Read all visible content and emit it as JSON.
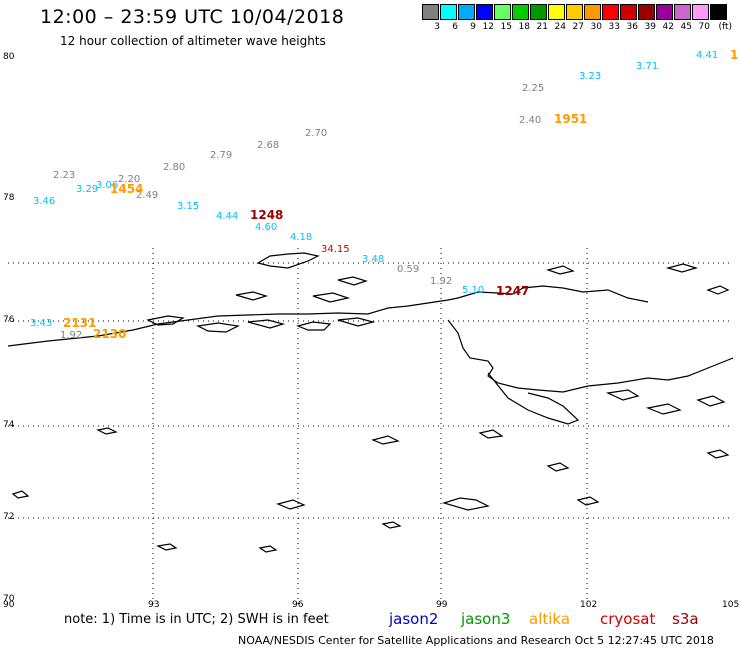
{
  "title": "12:00 – 23:59 UTC 10/04/2018",
  "subtitle": "12 hour collection of altimeter wave heights",
  "scale": {
    "unit": "(ft)",
    "swatches": [
      {
        "color": "#808080",
        "label": "3"
      },
      {
        "color": "#00ffff",
        "label": "6"
      },
      {
        "color": "#00aaff",
        "label": "9"
      },
      {
        "color": "#0000ff",
        "label": "12"
      },
      {
        "color": "#66ff66",
        "label": "15"
      },
      {
        "color": "#00cc00",
        "label": "18"
      },
      {
        "color": "#009900",
        "label": "21"
      },
      {
        "color": "#ffff00",
        "label": "24"
      },
      {
        "color": "#ffcc00",
        "label": "27"
      },
      {
        "color": "#ff9900",
        "label": "30"
      },
      {
        "color": "#ff0000",
        "label": "33"
      },
      {
        "color": "#cc0000",
        "label": "36"
      },
      {
        "color": "#990000",
        "label": "39"
      },
      {
        "color": "#990099",
        "label": "42"
      },
      {
        "color": "#cc66cc",
        "label": "45"
      },
      {
        "color": "#ff99ff",
        "label": "70"
      },
      {
        "color": "#000000",
        "label": ""
      }
    ]
  },
  "axes": {
    "lat_labels": [
      "80",
      "78",
      "76",
      "74",
      "72",
      "70"
    ],
    "lon_labels": [
      "90",
      "93",
      "96",
      "99",
      "102",
      "105"
    ]
  },
  "wave_heights": [
    {
      "text": "2.23",
      "color": "#808080"
    },
    {
      "text": "3.29",
      "color": "#00bfff"
    },
    {
      "text": "3.06",
      "color": "#00bfff"
    },
    {
      "text": "2.20",
      "color": "#808080"
    },
    {
      "text": "2.49",
      "color": "#808080"
    },
    {
      "text": "3.46",
      "color": "#00bfff"
    },
    {
      "text": "2.80",
      "color": "#808080"
    },
    {
      "text": "2.79",
      "color": "#808080"
    },
    {
      "text": "2.68",
      "color": "#808080"
    },
    {
      "text": "2.70",
      "color": "#808080"
    },
    {
      "text": "3.15",
      "color": "#00bfff"
    },
    {
      "text": "4.44",
      "color": "#00bfff"
    },
    {
      "text": "4.60",
      "color": "#00bfff"
    },
    {
      "text": "4.18",
      "color": "#00bfff"
    },
    {
      "text": "34.15",
      "color": "#cc0000"
    },
    {
      "text": "3.48",
      "color": "#00bfff"
    },
    {
      "text": "0.59",
      "color": "#808080"
    },
    {
      "text": "1.92",
      "color": "#808080"
    },
    {
      "text": "5.10",
      "color": "#00bfff"
    },
    {
      "text": "2.25",
      "color": "#808080"
    },
    {
      "text": "2.40",
      "color": "#808080"
    },
    {
      "text": "3.23",
      "color": "#00bfff"
    },
    {
      "text": "3.71",
      "color": "#00bfff"
    },
    {
      "text": "4.41",
      "color": "#00bfff"
    },
    {
      "text": "3.43",
      "color": "#00bfff"
    },
    {
      "text": "1.92",
      "color": "#808080"
    }
  ],
  "pass_times": [
    {
      "text": "1454",
      "color": "#ff9900"
    },
    {
      "text": "1248",
      "color": "#990000"
    },
    {
      "text": "1951",
      "color": "#ff9900"
    },
    {
      "text": "1247",
      "color": "#990000"
    },
    {
      "text": "2131",
      "color": "#ff9900"
    },
    {
      "text": "2130",
      "color": "#ff9900"
    },
    {
      "text": "1",
      "color": "#ff9900"
    }
  ],
  "note": "note:  1) Time is in UTC;  2) SWH is in feet",
  "satellites": [
    {
      "name": "jason2",
      "color": "#0000cc"
    },
    {
      "name": "jason3",
      "color": "#009900"
    },
    {
      "name": "altika",
      "color": "#ff9900"
    },
    {
      "name": "cryosat",
      "color": "#cc0000"
    },
    {
      "name": "s3a",
      "color": "#990000"
    }
  ],
  "footer": "NOAA/NESDIS Center for Satellite Applications and Research    Oct  5 12:27:45 UTC 2018"
}
